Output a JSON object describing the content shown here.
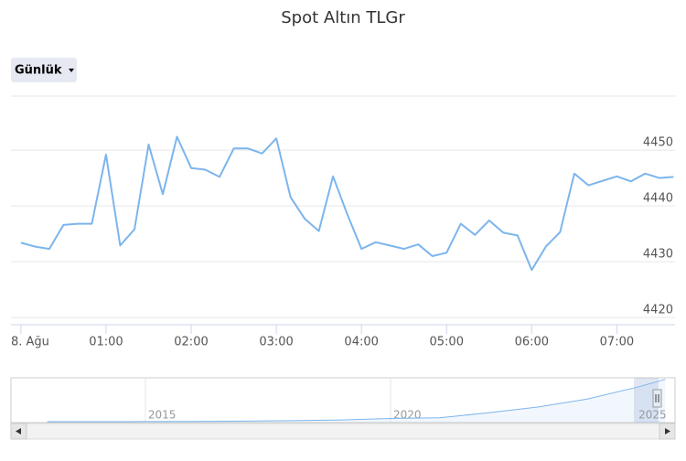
{
  "chart_data": {
    "type": "line",
    "title": "Spot Altın TLGr",
    "range_button": "Günlük",
    "x": [
      0,
      10,
      20,
      30,
      40,
      50,
      60,
      70,
      80,
      90,
      100,
      110,
      120,
      130,
      140,
      150,
      160,
      170,
      180,
      190,
      200,
      210,
      220,
      230,
      240,
      250,
      260,
      270,
      280,
      290,
      300,
      310,
      320,
      330,
      340,
      350,
      360,
      370,
      380,
      390,
      400,
      410,
      420,
      430,
      440,
      450,
      460
    ],
    "series": [
      {
        "color": "#7cb5ec",
        "values": [
          4433.4,
          4432.7,
          4432.3,
          4436.6,
          4436.8,
          4436.8,
          4449.2,
          4432.9,
          4435.8,
          4451.0,
          4442.1,
          4452.4,
          4446.8,
          4446.5,
          4445.2,
          4450.3,
          4450.3,
          4449.4,
          4452.1,
          4441.6,
          4437.7,
          4435.5,
          4445.3,
          4438.5,
          4432.3,
          4433.5,
          4432.9,
          4432.3,
          4433.1,
          4431.0,
          4431.6,
          4436.8,
          4434.8,
          4437.4,
          4435.2,
          4434.7,
          4428.5,
          4432.7,
          4435.3,
          4445.8,
          4443.7,
          4444.5,
          4445.3,
          4444.4,
          4445.8,
          4445.0,
          4445.2
        ]
      }
    ],
    "xlim": [
      -7,
      461
    ],
    "xticks": [
      {
        "value": 0,
        "label": "8. Ağu"
      },
      {
        "value": 60,
        "label": "01:00"
      },
      {
        "value": 120,
        "label": "02:00"
      },
      {
        "value": 180,
        "label": "03:00"
      },
      {
        "value": 240,
        "label": "04:00"
      },
      {
        "value": 300,
        "label": "05:00"
      },
      {
        "value": 360,
        "label": "06:00"
      },
      {
        "value": 420,
        "label": "07:00"
      }
    ],
    "ylim": [
      4418.7,
      4459.7
    ],
    "yticks": [
      4420,
      4430,
      4440,
      4450
    ],
    "grid": true,
    "navigator": {
      "x": [
        2013,
        2014,
        2015,
        2016,
        2017,
        2018,
        2019,
        2020,
        2021,
        2022,
        2023,
        2024,
        2025,
        2025.6
      ],
      "values": [
        90,
        90,
        100,
        120,
        150,
        200,
        270,
        420,
        500,
        1000,
        1600,
        2400,
        3600,
        4445
      ],
      "xlim": [
        2012.26,
        2025.8
      ],
      "ylim": [
        0,
        4600
      ],
      "xticks": [
        2015,
        2020,
        2025
      ],
      "color": "#7cb5ec"
    }
  }
}
